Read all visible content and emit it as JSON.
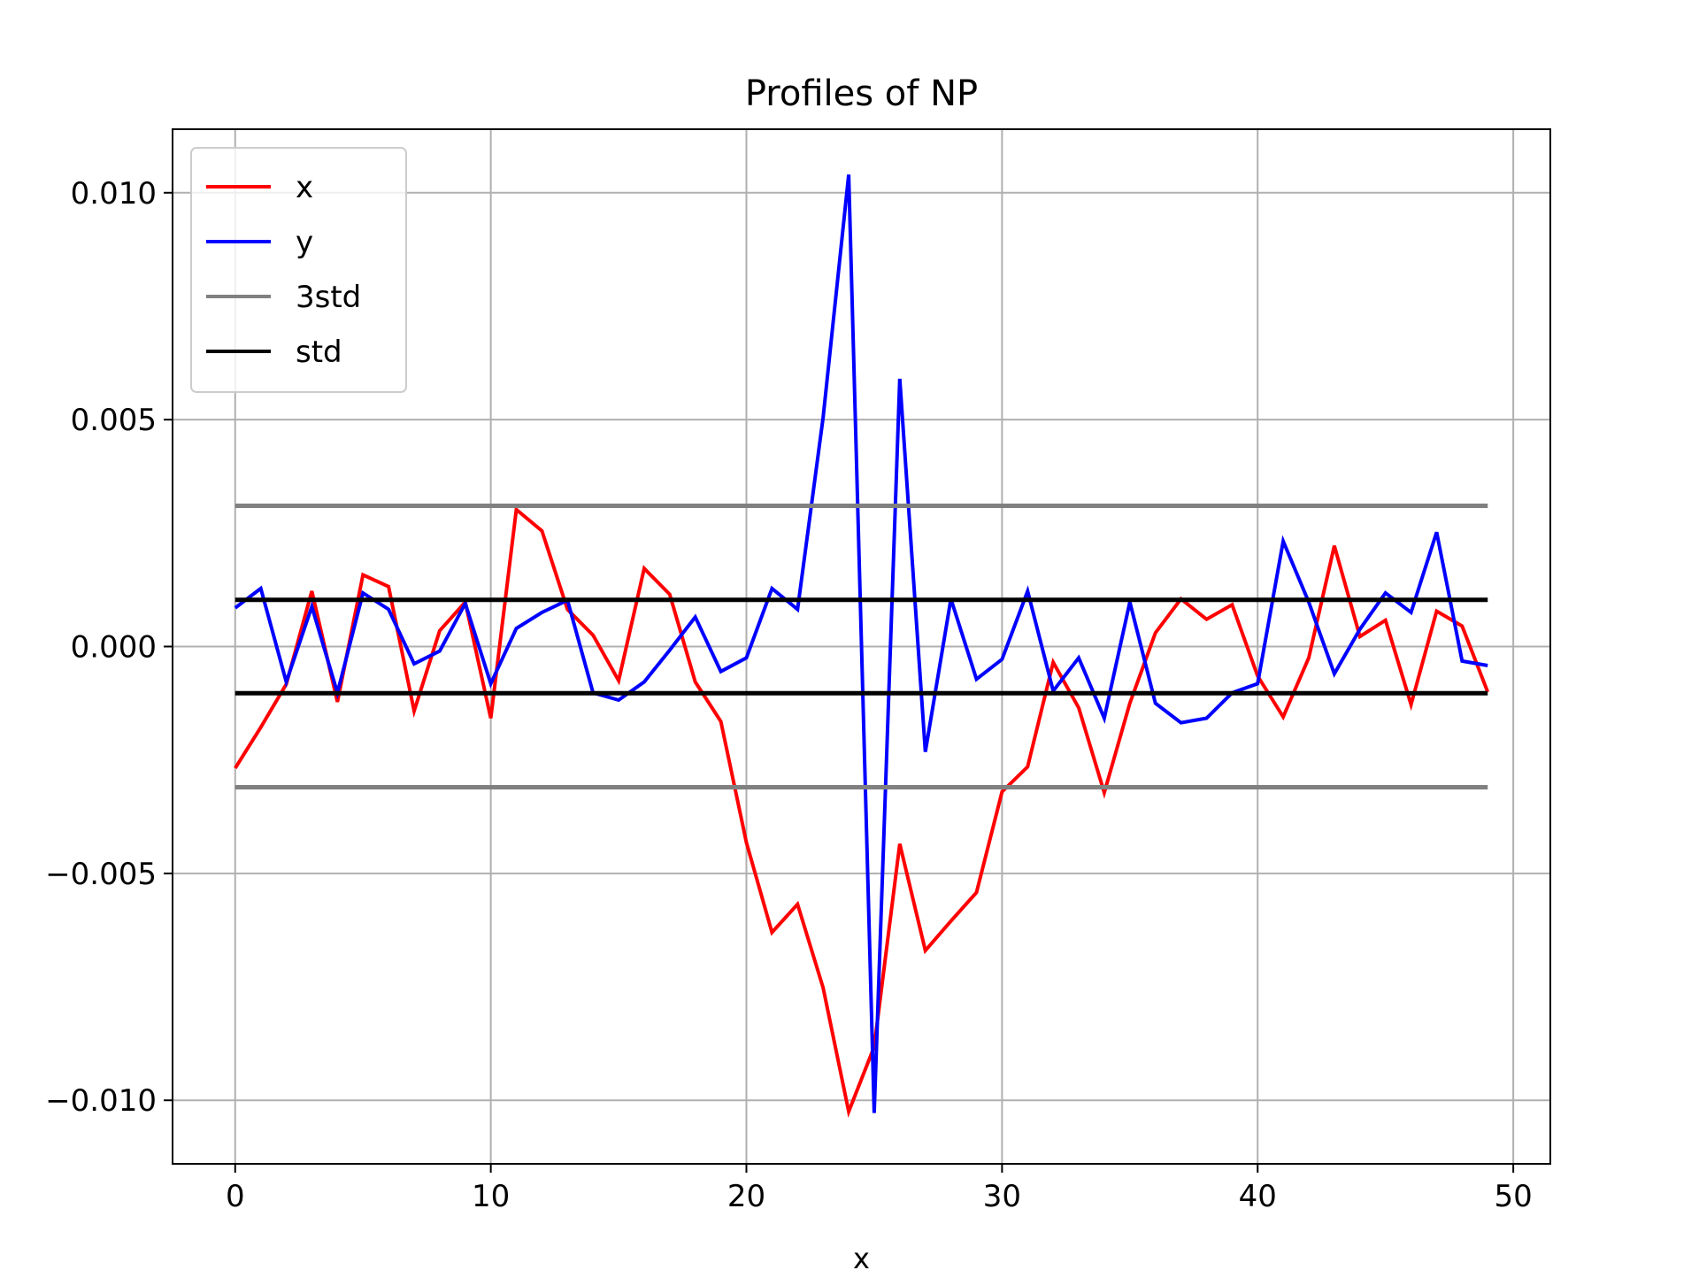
{
  "chart_data": {
    "type": "line",
    "title": "Profiles of NP",
    "xlabel": "x",
    "ylabel": "",
    "xlim": [
      -2.45,
      51.45
    ],
    "ylim": [
      -0.0114,
      0.0114
    ],
    "xticks": [
      0,
      10,
      20,
      30,
      40,
      50
    ],
    "xtick_labels": [
      "0",
      "10",
      "20",
      "30",
      "40",
      "50"
    ],
    "yticks": [
      -0.01,
      -0.005,
      0.0,
      0.005,
      0.01
    ],
    "ytick_labels": [
      "−0.010",
      "−0.005",
      "0.000",
      "0.005",
      "0.010"
    ],
    "grid": true,
    "legend_position": "upper-left",
    "x": [
      0,
      1,
      2,
      3,
      4,
      5,
      6,
      7,
      8,
      9,
      10,
      11,
      12,
      13,
      14,
      15,
      16,
      17,
      18,
      19,
      20,
      21,
      22,
      23,
      24,
      25,
      26,
      27,
      28,
      29,
      30,
      31,
      32,
      33,
      34,
      35,
      36,
      37,
      38,
      39,
      40,
      41,
      42,
      43,
      44,
      45,
      46,
      47,
      48,
      49
    ],
    "series": [
      {
        "name": "x",
        "color": "#ff0000",
        "values": [
          -0.00268,
          -0.00178,
          -0.00083,
          0.00122,
          -0.00122,
          0.00158,
          0.00132,
          -0.00142,
          0.00035,
          0.00098,
          -0.00158,
          0.00302,
          0.00255,
          0.00082,
          0.00025,
          -0.00075,
          0.00172,
          0.00115,
          -0.00078,
          -0.00165,
          -0.00432,
          -0.0063,
          -0.00568,
          -0.00752,
          -0.01025,
          -0.00882,
          -0.00435,
          -0.0067,
          -0.00605,
          -0.00542,
          -0.0032,
          -0.00265,
          -0.00035,
          -0.00135,
          -0.00322,
          -0.00125,
          0.0003,
          0.00105,
          0.0006,
          0.00092,
          -0.00065,
          -0.00155,
          -0.00025,
          0.00222,
          0.00022,
          0.00058,
          -0.00128,
          0.00078,
          0.00045,
          -0.001
        ]
      },
      {
        "name": "y",
        "color": "#0000ff",
        "values": [
          0.00085,
          0.00128,
          -0.00078,
          0.00088,
          -0.00102,
          0.00118,
          0.00082,
          -0.00038,
          -0.0001,
          0.00095,
          -0.00082,
          0.0004,
          0.00075,
          0.00102,
          -0.00102,
          -0.00118,
          -0.00078,
          -8e-05,
          0.00065,
          -0.00055,
          -0.00025,
          0.00128,
          0.00082,
          0.00505,
          0.0104,
          -0.01028,
          0.0059,
          -0.00232,
          0.00105,
          -0.00072,
          -0.00028,
          0.00122,
          -0.00098,
          -0.00025,
          -0.00158,
          0.00098,
          -0.00125,
          -0.00168,
          -0.00158,
          -0.00102,
          -0.00082,
          0.00232,
          0.00098,
          -0.0006,
          0.00038,
          0.00118,
          0.00075,
          0.00252,
          -0.00032,
          -0.00042
        ]
      },
      {
        "name": "3std",
        "color": "#808080",
        "hlines": [
          0.0031,
          -0.0031
        ]
      },
      {
        "name": "std",
        "color": "#000000",
        "hlines": [
          0.00103,
          -0.00103
        ]
      }
    ]
  }
}
